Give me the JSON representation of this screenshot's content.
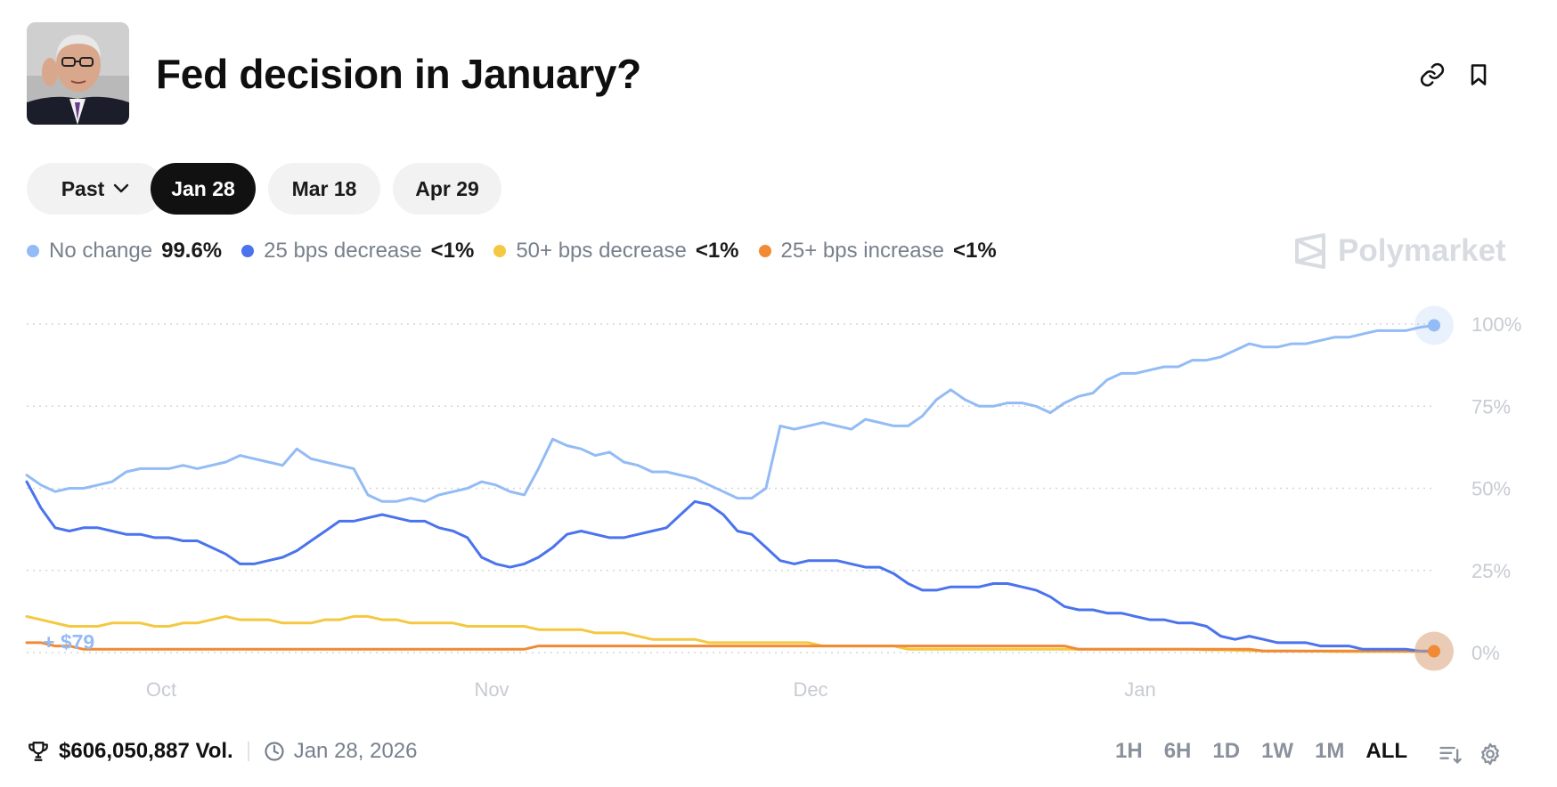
{
  "market": {
    "title": "Fed decision in January?"
  },
  "tabs": [
    {
      "label": "Past",
      "active": false,
      "dropdown": true
    },
    {
      "label": "Jan 28",
      "active": true
    },
    {
      "label": "Mar 18",
      "active": false
    },
    {
      "label": "Apr 29",
      "active": false
    }
  ],
  "legend": [
    {
      "name": "No change",
      "value": "99.6%",
      "color": "#93bbf5"
    },
    {
      "name": "25 bps decrease",
      "value": "<1%",
      "color": "#4a73ed"
    },
    {
      "name": "50+ bps decrease",
      "value": "<1%",
      "color": "#f5c842"
    },
    {
      "name": "25+ bps increase",
      "value": "<1%",
      "color": "#f08a35"
    }
  ],
  "brand": {
    "name": "Polymarket"
  },
  "chart_data": {
    "type": "line",
    "y_ticks": [
      "100%",
      "75%",
      "50%",
      "25%",
      "0%"
    ],
    "ylim": [
      0,
      100
    ],
    "x_labels": [
      "Oct",
      "Nov",
      "Dec",
      "Jan"
    ],
    "annotation": "+ $79",
    "grid": true,
    "series": [
      {
        "name": "No change",
        "color": "#93bbf5",
        "values": [
          54,
          51,
          49,
          50,
          50,
          51,
          52,
          55,
          56,
          56,
          56,
          57,
          56,
          57,
          58,
          60,
          59,
          58,
          57,
          62,
          59,
          58,
          57,
          56,
          48,
          46,
          46,
          47,
          46,
          48,
          49,
          50,
          52,
          51,
          49,
          48,
          56,
          65,
          63,
          62,
          60,
          61,
          58,
          57,
          55,
          55,
          54,
          53,
          51,
          49,
          47,
          47,
          50,
          69,
          68,
          69,
          70,
          69,
          68,
          71,
          70,
          69,
          69,
          72,
          77,
          80,
          77,
          75,
          75,
          76,
          76,
          75,
          73,
          76,
          78,
          79,
          83,
          85,
          85,
          86,
          87,
          87,
          89,
          89,
          90,
          92,
          94,
          93,
          93,
          94,
          94,
          95,
          96,
          96,
          97,
          98,
          98,
          98,
          99,
          99.6
        ]
      },
      {
        "name": "25 bps decrease",
        "color": "#4a73ed",
        "values": [
          52,
          44,
          38,
          37,
          38,
          38,
          37,
          36,
          36,
          35,
          35,
          34,
          34,
          32,
          30,
          27,
          27,
          28,
          29,
          31,
          34,
          37,
          40,
          40,
          41,
          42,
          41,
          40,
          40,
          38,
          37,
          35,
          29,
          27,
          26,
          27,
          29,
          32,
          36,
          37,
          36,
          35,
          35,
          36,
          37,
          38,
          42,
          46,
          45,
          42,
          37,
          36,
          32,
          28,
          27,
          28,
          28,
          28,
          27,
          26,
          26,
          24,
          21,
          19,
          19,
          20,
          20,
          20,
          21,
          21,
          20,
          19,
          17,
          14,
          13,
          13,
          12,
          12,
          11,
          10,
          10,
          9,
          9,
          8,
          5,
          4,
          5,
          4,
          3,
          3,
          3,
          2,
          2,
          2,
          1,
          1,
          1,
          1,
          0.5,
          0.4
        ]
      },
      {
        "name": "50+ bps decrease",
        "color": "#f5c842",
        "values": [
          11,
          10,
          9,
          8,
          8,
          8,
          9,
          9,
          9,
          8,
          8,
          9,
          9,
          10,
          11,
          10,
          10,
          10,
          9,
          9,
          9,
          10,
          10,
          11,
          11,
          10,
          10,
          9,
          9,
          9,
          9,
          8,
          8,
          8,
          8,
          8,
          7,
          7,
          7,
          7,
          6,
          6,
          6,
          5,
          4,
          4,
          4,
          4,
          3,
          3,
          3,
          3,
          3,
          3,
          3,
          3,
          2,
          2,
          2,
          2,
          2,
          2,
          1,
          1,
          1,
          1,
          1,
          1,
          1,
          1,
          1,
          1,
          1,
          1,
          1,
          1,
          1,
          1,
          1,
          1,
          1,
          1,
          1,
          0.8,
          0.8,
          0.7,
          0.6,
          0.5,
          0.5,
          0.5,
          0.4,
          0.4,
          0.3,
          0.3,
          0.3,
          0.3,
          0.3,
          0.3,
          0.3,
          0.2
        ]
      },
      {
        "name": "25+ bps increase",
        "color": "#f08a35",
        "values": [
          3,
          3,
          2,
          2,
          1,
          1,
          1,
          1,
          1,
          1,
          1,
          1,
          1,
          1,
          1,
          1,
          1,
          1,
          1,
          1,
          1,
          1,
          1,
          1,
          1,
          1,
          1,
          1,
          1,
          1,
          1,
          1,
          1,
          1,
          1,
          1,
          2,
          2,
          2,
          2,
          2,
          2,
          2,
          2,
          2,
          2,
          2,
          2,
          2,
          2,
          2,
          2,
          2,
          2,
          2,
          2,
          2,
          2,
          2,
          2,
          2,
          2,
          2,
          2,
          2,
          2,
          2,
          2,
          2,
          2,
          2,
          2,
          2,
          2,
          1,
          1,
          1,
          1,
          1,
          1,
          1,
          1,
          1,
          1,
          1,
          1,
          1,
          0.5,
          0.5,
          0.5,
          0.5,
          0.5,
          0.5,
          0.5,
          0.5,
          0.5,
          0.5,
          0.5,
          0.5,
          0.4
        ]
      }
    ]
  },
  "footer": {
    "volume": "$606,050,887 Vol.",
    "date": "Jan 28, 2026"
  },
  "time_ranges": [
    {
      "label": "1H",
      "active": false
    },
    {
      "label": "6H",
      "active": false
    },
    {
      "label": "1D",
      "active": false
    },
    {
      "label": "1W",
      "active": false
    },
    {
      "label": "1M",
      "active": false
    },
    {
      "label": "ALL",
      "active": true
    }
  ],
  "icons": {
    "link": "link-icon",
    "bookmark": "bookmark-icon",
    "trophy": "trophy-icon",
    "clock": "clock-icon",
    "sort": "sort-icon",
    "settings": "gear-icon"
  }
}
